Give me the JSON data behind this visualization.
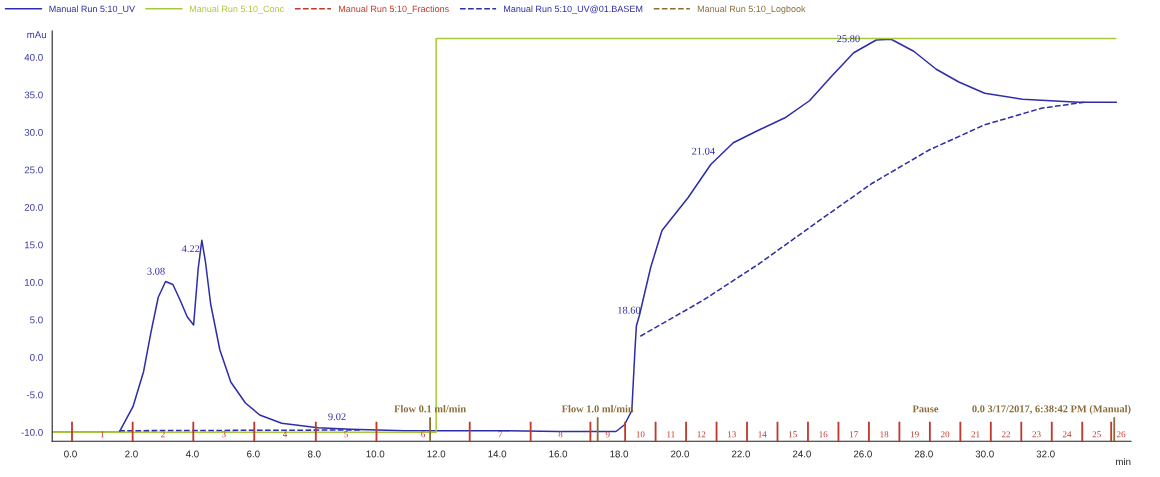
{
  "chart_data": {
    "type": "line",
    "xlabel": "min",
    "ylabel": "mAu",
    "xlim": [
      -0.6,
      34.8
    ],
    "ylim": [
      -11.2,
      43.5
    ],
    "xticks": [
      {
        "value": 0,
        "label": "0.0"
      },
      {
        "value": 2,
        "label": "2.0"
      },
      {
        "value": 4,
        "label": "4.0"
      },
      {
        "value": 6,
        "label": "6.0"
      },
      {
        "value": 8,
        "label": "8.0"
      },
      {
        "value": 10,
        "label": "10.0"
      },
      {
        "value": 12,
        "label": "12.0"
      },
      {
        "value": 14,
        "label": "14.0"
      },
      {
        "value": 16,
        "label": "16.0"
      },
      {
        "value": 18,
        "label": "18.0"
      },
      {
        "value": 20,
        "label": "20.0"
      },
      {
        "value": 22,
        "label": "22.0"
      },
      {
        "value": 24,
        "label": "24.0"
      },
      {
        "value": 26,
        "label": "26.0"
      },
      {
        "value": 28,
        "label": "28.0"
      },
      {
        "value": 30,
        "label": "30.0"
      },
      {
        "value": 32,
        "label": "32.0"
      }
    ],
    "yticks": [
      {
        "value": -10,
        "label": "-10.0"
      },
      {
        "value": -5,
        "label": "-5.0"
      },
      {
        "value": 0,
        "label": "0.0"
      },
      {
        "value": 5,
        "label": "5.0"
      },
      {
        "value": 10,
        "label": "10.0"
      },
      {
        "value": 15,
        "label": "15.0"
      },
      {
        "value": 20,
        "label": "20.0"
      },
      {
        "value": 25,
        "label": "25.0"
      },
      {
        "value": 30,
        "label": "30.0"
      },
      {
        "value": 35,
        "label": "35.0"
      },
      {
        "value": 40,
        "label": "40.0"
      }
    ],
    "grid": false,
    "legend": "top",
    "series": [
      {
        "name": "Manual Run 5:10_UV",
        "color": "#2e2eaa",
        "x": [
          -0.6,
          1.6,
          2.05,
          2.4,
          2.64,
          2.88,
          3.12,
          3.36,
          3.6,
          3.83,
          4.04,
          4.19,
          4.31,
          4.43,
          4.6,
          4.9,
          5.26,
          5.74,
          6.21,
          6.93,
          8.12,
          9.19,
          10.98,
          14.0,
          16.0,
          17.9,
          18.18,
          18.42,
          18.52,
          18.57,
          18.67,
          19.04,
          19.41,
          19.78,
          20.27,
          21.01,
          21.75,
          22.49,
          23.48,
          24.25,
          24.96,
          25.7,
          26.44,
          26.93,
          27.67,
          28.41,
          29.15,
          30.0,
          31.24,
          33.09,
          34.32
        ],
        "values": [
          -10.0,
          -10.0,
          -6.6,
          -1.9,
          3.3,
          8.0,
          10.1,
          9.7,
          7.6,
          5.4,
          4.3,
          11.8,
          15.6,
          12.7,
          7.1,
          1.0,
          -3.3,
          -6.1,
          -7.7,
          -8.8,
          -9.4,
          -9.6,
          -9.8,
          -9.8,
          -9.9,
          -9.9,
          -9.0,
          -7.1,
          0.8,
          4.2,
          5.6,
          12.0,
          16.9,
          18.8,
          21.3,
          25.7,
          28.6,
          30.1,
          32.0,
          34.2,
          37.4,
          40.6,
          42.3,
          42.4,
          40.8,
          38.4,
          36.7,
          35.2,
          34.4,
          34.0,
          34.0
        ]
      },
      {
        "name": "Manual Run 5:10_Conc",
        "color": "#a8c83c",
        "x": [
          -0.6,
          12.0,
          12.0,
          34.3
        ],
        "values": [
          -10.0,
          -10.0,
          42.5,
          42.5
        ]
      },
      {
        "name": "Manual Run 5:10_Fractions",
        "color": "#c0392b",
        "type": "bar",
        "line_style": "dashed",
        "x": [
          0.05,
          2.04,
          4.03,
          6.03,
          8.05,
          10.04,
          13.1,
          15.1,
          17.06,
          18.2,
          19.2,
          20.2,
          21.2,
          22.2,
          23.2,
          24.2,
          25.2,
          26.2,
          27.2,
          28.2,
          29.2,
          30.2,
          31.2,
          32.2,
          33.2,
          34.15
        ],
        "base": [
          -11.2,
          -11.2,
          -11.2,
          -11.2,
          -11.2,
          -11.2,
          -11.2,
          -11.2,
          -11.2,
          -11.2,
          -11.2,
          -11.2,
          -11.2,
          -11.2,
          -11.2,
          -11.2,
          -11.2,
          -11.2,
          -11.2,
          -11.2,
          -11.2,
          -11.2,
          -11.2,
          -11.2,
          -11.2,
          -11.2
        ],
        "values": [
          2.6,
          2.6,
          2.6,
          2.6,
          2.6,
          2.6,
          2.6,
          2.6,
          2.6,
          2.6,
          2.6,
          2.6,
          2.6,
          2.6,
          2.6,
          2.6,
          2.6,
          2.6,
          2.6,
          2.6,
          2.6,
          2.6,
          2.6,
          2.6,
          2.6,
          2.6
        ]
      },
      {
        "name": "Manual Run 5:10_UV@01.BASEM",
        "color": "#2e2eaa",
        "line_style": "dashed",
        "x": [
          1.6,
          9.5,
          14.0,
          18.7,
          20.76,
          22.61,
          24.46,
          26.31,
          28.16,
          30.0,
          31.86,
          33.27
        ],
        "values": [
          -9.8,
          -9.7,
          null,
          2.8,
          7.6,
          12.5,
          17.9,
          23.2,
          27.6,
          31.0,
          33.2,
          34.0
        ]
      },
      {
        "name": "Manual Run 5:10_Logbook",
        "color": "#8b6d3a",
        "type": "bar",
        "line_style": "dashed",
        "x": [
          11.8,
          17.3,
          34.25
        ],
        "base": [
          -11.2,
          -11.2,
          -11.2
        ],
        "values": [
          3.2,
          3.2,
          3.2
        ]
      }
    ],
    "annotations": [
      {
        "text": "3.08",
        "x": 3.08,
        "y": 9.8
      },
      {
        "text": "4.22",
        "x": 4.22,
        "y": 12.8
      },
      {
        "text": "9.02",
        "x": 9.02,
        "y": -9.6
      },
      {
        "text": "18.60",
        "x": 18.6,
        "y": 4.6
      },
      {
        "text": "21.04",
        "x": 21.04,
        "y": 25.8
      },
      {
        "text": "25.80",
        "x": 25.8,
        "y": 40.8
      },
      "1",
      "2",
      "3",
      "4",
      "5",
      "6",
      "7",
      "8",
      "9",
      "10",
      "11",
      "12",
      "13",
      "14",
      "15",
      "16",
      "17",
      "18",
      "19",
      "20",
      "21",
      "22",
      "23",
      "24",
      "25",
      "26",
      "Flow 0.1 ml/min",
      "Flow 1.0 ml/min",
      "Pause",
      "0.0 3/17/2017, 6:38:42 PM (Manual)"
    ]
  }
}
